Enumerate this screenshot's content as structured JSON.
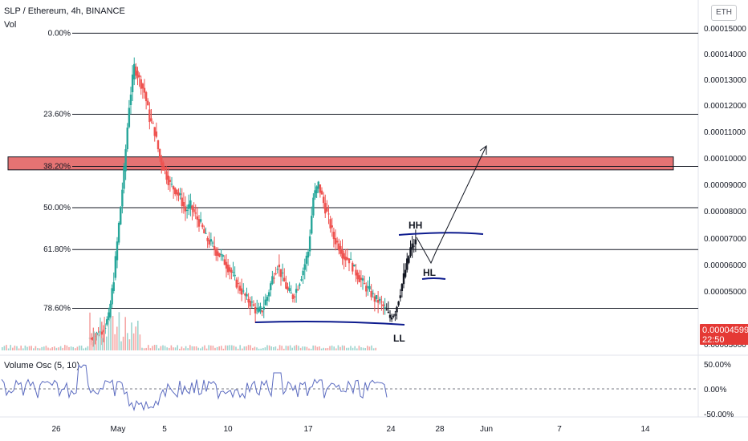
{
  "header": {
    "title": "SLP / Ethereum, 4h, BINANCE",
    "volume_label": "Vol",
    "currency_button": "ETH"
  },
  "price_badge": {
    "price": "0.00004599",
    "countdown": "22:50",
    "color": "#e53935"
  },
  "oscillator": {
    "label": "Volume Osc (5, 10)",
    "ticks": [
      "50.00%",
      "0.00%",
      "-50.00%"
    ]
  },
  "colors": {
    "up": "#26a69a",
    "down": "#ef5350",
    "drawing": "#0d1b8e",
    "resistance_zone": "#e57373",
    "osc_line": "#5b6bc0"
  },
  "chart_data": {
    "type": "candlestick",
    "title": "SLP / Ethereum, 4h, BINANCE",
    "y_axis": {
      "scale": "linear",
      "ylim": [
        2.7e-05,
        1.57e-05
      ],
      "tick_labels": [
        "0.00015000",
        "0.00014000",
        "0.00013000",
        "0.00012000",
        "0.00011000",
        "0.00010000",
        "0.00009000",
        "0.00008000",
        "0.00007000",
        "0.00006000",
        "0.00005000",
        "0.00003000"
      ],
      "tick_values": [
        0.00015,
        0.00014,
        0.00013,
        0.00012,
        0.00011,
        0.0001,
        9e-05,
        8e-05,
        7e-05,
        6e-05,
        5e-05,
        3e-05
      ]
    },
    "x_axis": {
      "tick_labels": [
        "26",
        "May",
        "5",
        "10",
        "17",
        "24",
        "28",
        "Jun",
        "7",
        "14"
      ]
    },
    "fibonacci_levels": [
      {
        "label": "0.00%",
        "price": 0.000148
      },
      {
        "label": "23.60%",
        "price": 0.0001165
      },
      {
        "label": "38.20%",
        "price": 9.68e-05
      },
      {
        "label": "50.00%",
        "price": 8.12e-05
      },
      {
        "label": "61.80%",
        "price": 6.57e-05
      },
      {
        "label": "78.60%",
        "price": 4.35e-05
      }
    ],
    "resistance_zone": {
      "from": 9.55e-05,
      "to": 0.0001004
    },
    "annotations": [
      "HH",
      "HL",
      "LL"
    ],
    "series_close_path": [
      3.2e-05,
      3.3e-05,
      3.4e-05,
      3.6e-05,
      4e-05,
      5.5e-05,
      7.5e-05,
      9.5e-05,
      0.00012,
      0.000135,
      0.00013,
      0.000125,
      0.000115,
      0.00011,
      0.0001,
      9.5e-05,
      9e-05,
      8.8e-05,
      8.5e-05,
      8e-05,
      8.2e-05,
      7.8e-05,
      7.5e-05,
      7e-05,
      6.8e-05,
      6.5e-05,
      6.3e-05,
      6e-05,
      5.7e-05,
      5.3e-05,
      5e-05,
      4.7e-05,
      4.5e-05,
      4.2e-05,
      4.3e-05,
      4.8e-05,
      5.5e-05,
      6e-05,
      5.5e-05,
      5e-05,
      4.8e-05,
      5.2e-05,
      5.8e-05,
      6.5e-05,
      8.5e-05,
      9e-05,
      8.3e-05,
      7.7e-05,
      7e-05,
      6.7e-05,
      6.3e-05,
      6.2e-05,
      5.8e-05,
      5.5e-05,
      5.2e-05,
      5e-05,
      4.7e-05,
      4.6e-05,
      4.3e-05,
      4e-05,
      4.2e-05,
      5e-05,
      5.8e-05,
      6.6e-05,
      6.85e-05
    ],
    "current_price": 4.599e-05
  }
}
